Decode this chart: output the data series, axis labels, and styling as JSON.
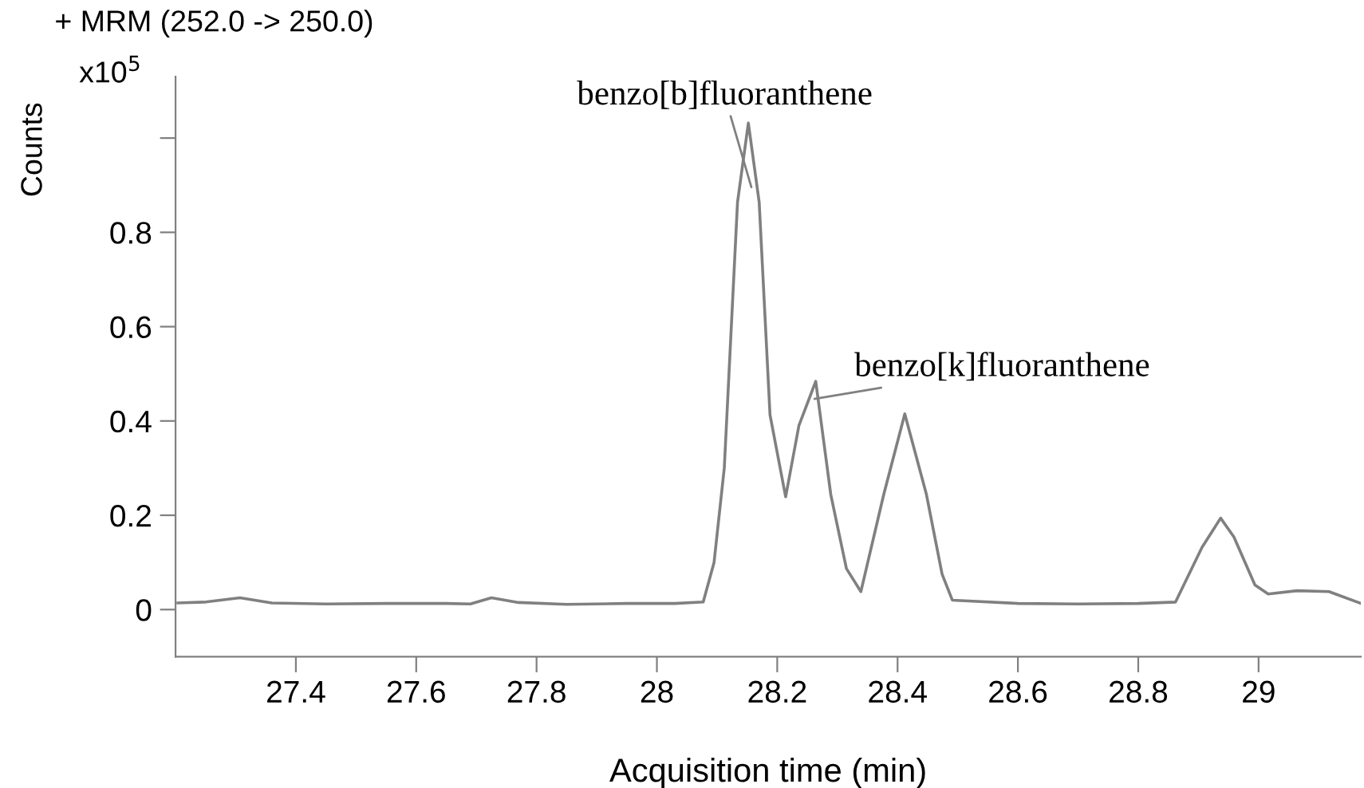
{
  "chart_data": {
    "type": "line",
    "title": "+ MRM (252.0 -> 250.0)",
    "xlabel": "Acquisition time (min)",
    "ylabel": "Counts",
    "annotations": [
      "x10$^{5}$",
      {
        "text": "benzo[b]fluoranthene",
        "x": 28.157,
        "y": 0.896
      },
      {
        "text": "benzo[k]fluoranthene",
        "x": 28.262,
        "y": 0.447
      }
    ],
    "series": [
      {
        "color": "#808080",
        "x": [
          27.204,
          27.25,
          27.307,
          27.36,
          27.45,
          27.55,
          27.65,
          27.69,
          27.725,
          27.77,
          27.85,
          27.95,
          28.03,
          28.077,
          28.095,
          28.112,
          28.134,
          28.152,
          28.17,
          28.188,
          28.214,
          28.236,
          28.264,
          28.289,
          28.315,
          28.339,
          28.377,
          28.412,
          28.448,
          28.474,
          28.491,
          28.6,
          28.7,
          28.8,
          28.862,
          28.906,
          28.937,
          28.959,
          28.994,
          29.016,
          29.064,
          29.117,
          29.17
        ],
        "values": [
          0.014,
          0.016,
          0.025,
          0.014,
          0.012,
          0.013,
          0.013,
          0.012,
          0.025,
          0.015,
          0.011,
          0.013,
          0.013,
          0.016,
          0.1,
          0.3,
          0.864,
          1.032,
          0.864,
          0.413,
          0.239,
          0.39,
          0.484,
          0.244,
          0.087,
          0.038,
          0.244,
          0.415,
          0.244,
          0.075,
          0.02,
          0.013,
          0.012,
          0.013,
          0.016,
          0.132,
          0.194,
          0.154,
          0.052,
          0.033,
          0.04,
          0.038,
          0.013
        ]
      }
    ],
    "xlim": [
      27.2,
      29.17
    ],
    "ylim": [
      -0.1,
      1.13
    ],
    "xticks": [
      27.4,
      27.6,
      27.8,
      28,
      28.2,
      28.4,
      28.6,
      28.8,
      29
    ],
    "yticks": [
      0,
      0.2,
      0.4,
      0.6,
      0.8,
      {
        "value": 1.0,
        "label": null
      }
    ],
    "grid": false,
    "legend": false
  }
}
